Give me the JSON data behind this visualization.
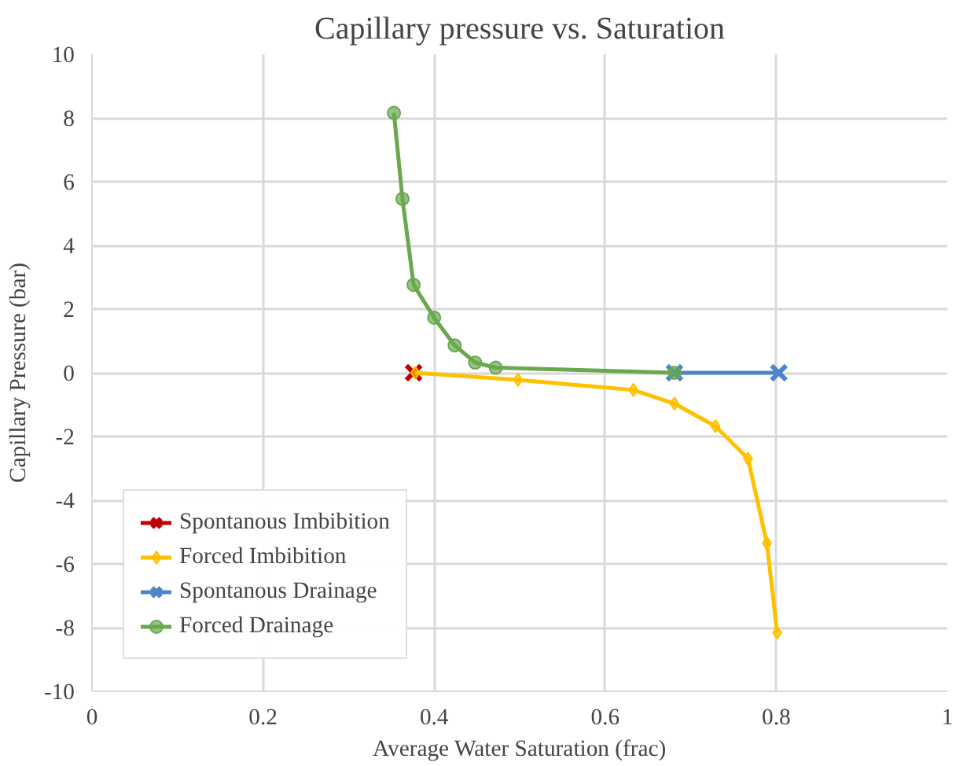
{
  "chart_data": {
    "type": "line",
    "title": "Capillary pressure vs. Saturation",
    "xlabel": "Average Water Saturation (frac)",
    "ylabel": "Capillary Pressure (bar)",
    "xlim": [
      0,
      1
    ],
    "xticks": [
      0,
      0.2,
      0.4,
      0.6,
      0.8,
      1
    ],
    "ylim": [
      -10,
      10
    ],
    "yticks": [
      -10,
      -8,
      -6,
      -4,
      -2,
      0,
      2,
      4,
      6,
      8,
      10
    ],
    "grid": true,
    "legend": "bottom left",
    "series": [
      {
        "name": "Spontanous Imbibition",
        "color": "#c00000",
        "marker": "cross",
        "x": [
          0.376
        ],
        "values": [
          0
        ]
      },
      {
        "name": "Forced Imbibition",
        "color": "#ffc000",
        "marker": "diamond",
        "x": [
          0.378,
          0.498,
          0.633,
          0.681,
          0.729,
          0.767,
          0.789,
          0.801
        ],
        "values": [
          0,
          -0.22,
          -0.54,
          -0.97,
          -1.68,
          -2.7,
          -5.35,
          -8.16
        ]
      },
      {
        "name": "Spontanous Drainage",
        "color": "#4a86c8",
        "marker": "cross",
        "x": [
          0.681,
          0.803
        ],
        "values": [
          0,
          0
        ]
      },
      {
        "name": "Forced Drainage",
        "color": "#6aa84f",
        "marker": "circle",
        "x": [
          0.353,
          0.363,
          0.376,
          0.4,
          0.424,
          0.448,
          0.472,
          0.681
        ],
        "values": [
          8.16,
          5.46,
          2.76,
          1.73,
          0.86,
          0.32,
          0.16,
          0
        ]
      }
    ]
  }
}
